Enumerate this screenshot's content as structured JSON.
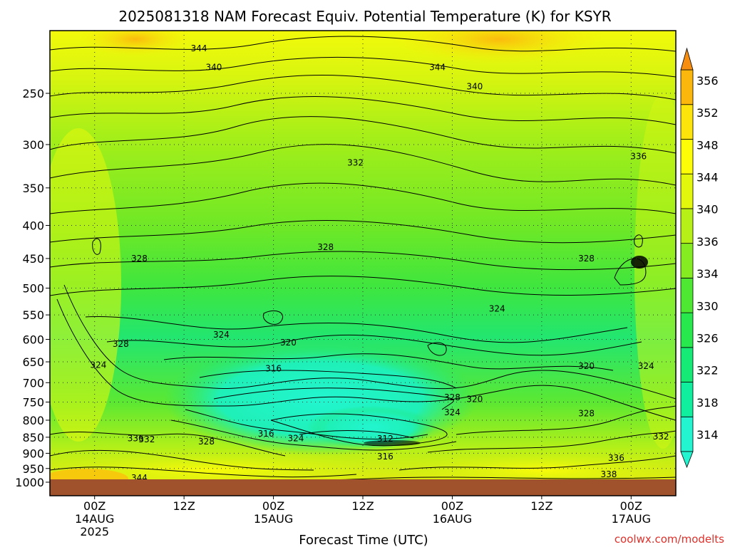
{
  "chart_data": {
    "type": "contour",
    "title": "2025081318 NAM Forecast Equiv. Potential Temperature (K) for KSYR",
    "xlabel": "Forecast Time (UTC)",
    "ylabel": "",
    "credit": "coolwx.com/modelts",
    "y_axis": {
      "scale": "log-pressure",
      "inverted": true,
      "ticks": [
        250,
        300,
        350,
        400,
        450,
        500,
        550,
        600,
        650,
        700,
        750,
        800,
        850,
        900,
        950,
        1000
      ],
      "ylim": [
        200,
        1000
      ]
    },
    "x_axis": {
      "range_hours": [
        -6,
        78
      ],
      "ticks": [
        {
          "hours": 0,
          "line1": "00Z",
          "line2": "14AUG",
          "line3": "2025"
        },
        {
          "hours": 12,
          "line1": "12Z",
          "line2": "",
          "line3": ""
        },
        {
          "hours": 24,
          "line1": "00Z",
          "line2": "15AUG",
          "line3": ""
        },
        {
          "hours": 36,
          "line1": "12Z",
          "line2": "",
          "line3": ""
        },
        {
          "hours": 48,
          "line1": "00Z",
          "line2": "16AUG",
          "line3": ""
        },
        {
          "hours": 60,
          "line1": "12Z",
          "line2": "",
          "line3": ""
        },
        {
          "hours": 72,
          "line1": "00Z",
          "line2": "17AUG",
          "line3": ""
        }
      ]
    },
    "colorbar": {
      "levels": [
        314,
        318,
        322,
        326,
        330,
        334,
        336,
        340,
        344,
        348,
        352,
        356
      ],
      "colors": [
        "#22f5cf",
        "#0fef9e",
        "#14ea75",
        "#27e84c",
        "#4ee832",
        "#86ec22",
        "#b7f016",
        "#e2f70c",
        "#fdfd07",
        "#fde40a",
        "#fcb70c",
        "#f78e10"
      ],
      "extend": "both"
    },
    "surface_color": "#a0522d",
    "contour_labels": [
      {
        "text": "344",
        "h": 14,
        "p": 213
      },
      {
        "text": "340",
        "h": 16,
        "p": 228
      },
      {
        "text": "344",
        "h": 46,
        "p": 228
      },
      {
        "text": "340",
        "h": 51,
        "p": 244
      },
      {
        "text": "336",
        "h": 73,
        "p": 313
      },
      {
        "text": "332",
        "h": 35,
        "p": 320
      },
      {
        "text": "328",
        "h": 31,
        "p": 432
      },
      {
        "text": "328",
        "h": 6,
        "p": 450
      },
      {
        "text": "328",
        "h": 66,
        "p": 450
      },
      {
        "text": "324",
        "h": 54,
        "p": 538
      },
      {
        "text": "324",
        "h": 17,
        "p": 590
      },
      {
        "text": "320",
        "h": 26,
        "p": 607
      },
      {
        "text": "328",
        "h": 3.5,
        "p": 610
      },
      {
        "text": "324",
        "h": 0.5,
        "p": 657
      },
      {
        "text": "316",
        "h": 24,
        "p": 666
      },
      {
        "text": "320",
        "h": 66,
        "p": 660
      },
      {
        "text": "324",
        "h": 74,
        "p": 660
      },
      {
        "text": "328",
        "h": 48,
        "p": 738
      },
      {
        "text": "320",
        "h": 51,
        "p": 742
      },
      {
        "text": "324",
        "h": 48,
        "p": 778
      },
      {
        "text": "328",
        "h": 66,
        "p": 781
      },
      {
        "text": "316",
        "h": 23,
        "p": 840
      },
      {
        "text": "324",
        "h": 27,
        "p": 853
      },
      {
        "text": "312",
        "h": 39,
        "p": 855
      },
      {
        "text": "328",
        "h": 15,
        "p": 863
      },
      {
        "text": "332",
        "h": 76,
        "p": 848
      },
      {
        "text": "336",
        "h": 5.5,
        "p": 853
      },
      {
        "text": "332",
        "h": 7,
        "p": 857
      },
      {
        "text": "316",
        "h": 39,
        "p": 910
      },
      {
        "text": "336",
        "h": 70,
        "p": 915
      },
      {
        "text": "338",
        "h": 69,
        "p": 970
      },
      {
        "text": "344",
        "h": 6,
        "p": 982
      }
    ]
  }
}
